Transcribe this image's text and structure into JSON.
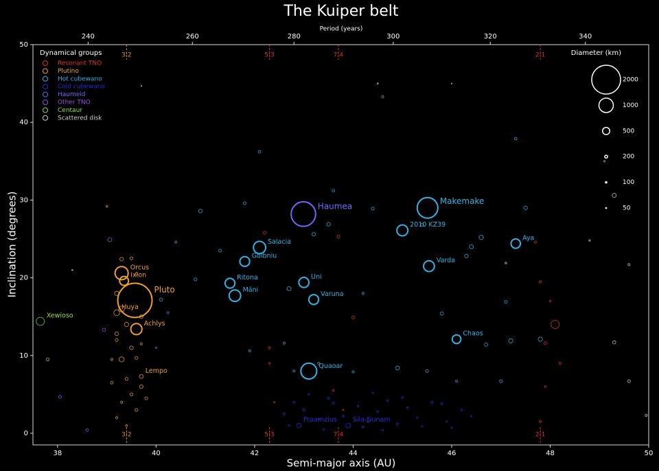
{
  "chart_data": {
    "type": "scatter",
    "title": "The Kuiper belt",
    "xlabel": "Semi-major axis (AU)",
    "ylabel": "Inclination (degrees)",
    "x2label": "Period (years)",
    "xlim": [
      37.5,
      50
    ],
    "ylim": [
      -1.5,
      50
    ],
    "xticks": [
      38,
      40,
      42,
      44,
      46,
      48,
      50
    ],
    "yticks": [
      0,
      10,
      20,
      30,
      40,
      50
    ],
    "x2ticks": [
      240,
      260,
      280,
      300,
      320,
      340
    ],
    "legend_title": "Dynamical groups",
    "legend_position": "upper left",
    "size_legend_title": "Diameter (km)",
    "size_legend": [
      2000,
      1000,
      500,
      200,
      100,
      50
    ],
    "resonances": [
      {
        "label": "3:2",
        "a": 39.4,
        "color": "#e08a3a"
      },
      {
        "label": "5:3",
        "a": 42.3,
        "color": "#e03030"
      },
      {
        "label": "7:4",
        "a": 43.7,
        "color": "#e03030"
      },
      {
        "label": "2:1",
        "a": 47.8,
        "color": "#e03030"
      }
    ],
    "series": [
      {
        "name": "Resonant TNO",
        "color": "#e03030",
        "x": [
          42.2,
          42.3,
          42.4,
          43.7,
          43.6,
          48.1,
          47.9,
          47.8,
          47.7,
          48.2,
          47.8,
          43.8,
          42.3,
          44.0,
          47.9,
          48.0
        ],
        "values": [
          25.8,
          11.0,
          4.0,
          25.3,
          5.5,
          14.0,
          11.6,
          19.5,
          24.6,
          9.0,
          1.5,
          3.0,
          9.0,
          14.9,
          6.0,
          17.0
        ],
        "sizes": [
          200,
          150,
          100,
          200,
          120,
          570,
          200,
          150,
          150,
          150,
          150,
          100,
          120,
          200,
          100,
          120
        ],
        "labels": [
          null,
          null,
          null,
          null,
          null,
          null,
          null,
          null,
          null,
          null,
          null,
          null,
          null,
          null,
          null,
          null
        ]
      },
      {
        "name": "Plutino",
        "color": "#f0a030",
        "x": [
          39.57,
          39.3,
          39.35,
          39.2,
          39.6,
          39.7,
          39.3,
          39.5,
          39.2,
          39.6,
          39.3,
          39.7,
          39.4,
          39.2,
          39.5,
          39.3,
          39.6,
          39.1,
          39.4,
          39.7,
          39.5,
          39.3,
          39.6,
          39.2,
          39.4,
          39.8,
          39.1,
          39.0,
          39.2,
          39.7
        ],
        "values": [
          17.1,
          20.6,
          19.6,
          15.5,
          13.4,
          7.3,
          22.4,
          22.5,
          18.0,
          20.5,
          16.0,
          15.0,
          14.0,
          12.0,
          11.0,
          9.5,
          9.7,
          9.5,
          7.0,
          6.0,
          5.0,
          4.0,
          3.0,
          2.0,
          1.0,
          4.5,
          6.5,
          29.2,
          12.8,
          11.5
        ],
        "sizes": [
          2377,
          910,
          617,
          406,
          772,
          272,
          250,
          200,
          300,
          180,
          400,
          250,
          300,
          200,
          250,
          350,
          200,
          150,
          200,
          250,
          200,
          150,
          200,
          150,
          120,
          200,
          180,
          120,
          250,
          150
        ],
        "labels": [
          "Pluto",
          "Orcus",
          "Ixion",
          "Huya",
          "Achlys",
          "Lempo",
          null,
          null,
          null,
          null,
          null,
          null,
          null,
          null,
          null,
          null,
          null,
          null,
          null,
          null,
          null,
          null,
          null,
          null,
          null,
          null,
          null,
          null,
          null,
          null
        ]
      },
      {
        "name": "Hot cubewano",
        "color": "#30b4e6",
        "x": [
          45.51,
          45.0,
          47.3,
          45.54,
          42.1,
          41.8,
          41.5,
          41.6,
          43.0,
          43.2,
          46.1,
          43.1,
          44.6,
          42.1,
          47.3,
          41.8,
          40.9,
          45.4,
          46.6,
          46.4,
          44.4,
          43.5,
          43.2,
          43.6,
          40.4,
          41.3,
          40.1,
          40.8,
          42.7,
          45.8,
          46.3,
          47.1,
          47.2,
          47.8,
          46.7,
          45.5,
          44.9,
          44.0,
          43.3,
          42.8,
          41.9,
          47.0,
          46.1,
          42.6,
          47.5,
          44.2
        ],
        "values": [
          29.0,
          26.1,
          24.4,
          21.5,
          23.9,
          22.1,
          19.3,
          17.7,
          19.4,
          17.2,
          12.1,
          8.0,
          43.3,
          36.2,
          37.9,
          29.6,
          28.6,
          26.8,
          25.2,
          24.0,
          28.9,
          26.9,
          25.6,
          31.2,
          24.6,
          23.5,
          17.2,
          19.8,
          18.6,
          15.4,
          22.8,
          16.9,
          11.9,
          12.1,
          11.4,
          8.0,
          8.4,
          7.9,
          9.0,
          8.0,
          10.6,
          6.7,
          6.7,
          11.6,
          29.0,
          18.0
        ],
        "sizes": [
          1430,
          760,
          650,
          750,
          850,
          680,
          680,
          800,
          700,
          680,
          600,
          1100,
          150,
          180,
          180,
          200,
          250,
          200,
          300,
          280,
          200,
          250,
          250,
          180,
          150,
          200,
          220,
          200,
          280,
          230,
          250,
          200,
          300,
          300,
          230,
          200,
          280,
          150,
          150,
          150,
          150,
          200,
          150,
          150,
          250,
          150
        ],
        "labels": [
          "Makemake",
          "2010 KZ39",
          "Aya",
          "Varda",
          "Salacia",
          "Goibniu",
          "Ritona",
          "Máni",
          "Uni",
          "Varuna",
          "Chaos",
          "Quaoar",
          null,
          null,
          null,
          null,
          null,
          null,
          null,
          null,
          null,
          null,
          null,
          null,
          null,
          null,
          null,
          null,
          null,
          null,
          null,
          null,
          null,
          null,
          null,
          null,
          null,
          null,
          null,
          null,
          null,
          null,
          null,
          null,
          null,
          null
        ]
      },
      {
        "name": "Cold cubewano",
        "color": "#2a2ad0",
        "x": [
          42.9,
          43.9,
          42.6,
          42.8,
          43.0,
          43.3,
          43.5,
          43.8,
          44.1,
          44.3,
          44.5,
          44.7,
          44.9,
          45.1,
          45.3,
          45.6,
          45.9,
          46.2,
          46.4,
          42.7,
          43.1,
          43.4,
          44.2,
          44.6,
          45.0,
          45.4,
          45.8,
          46.0,
          43.6,
          44.4
        ],
        "values": [
          1.0,
          1.0,
          2.5,
          4.0,
          3.0,
          1.8,
          4.5,
          2.2,
          3.5,
          1.5,
          2.8,
          4.2,
          1.2,
          3.3,
          2.0,
          4.0,
          1.5,
          3.0,
          2.2,
          1.0,
          5.0,
          0.5,
          0.8,
          0.4,
          4.6,
          0.9,
          3.8,
          0.7,
          3.9,
          5.2
        ],
        "sizes": [
          320,
          340,
          150,
          120,
          150,
          100,
          150,
          120,
          100,
          150,
          120,
          100,
          150,
          120,
          100,
          150,
          100,
          120,
          100,
          100,
          120,
          100,
          150,
          100,
          120,
          100,
          120,
          100,
          150,
          100
        ],
        "labels": [
          "Praamzius",
          "Sila-Nunam",
          null,
          null,
          null,
          null,
          null,
          null,
          null,
          null,
          null,
          null,
          null,
          null,
          null,
          null,
          null,
          null,
          null,
          null,
          null,
          null,
          null,
          null,
          null,
          null,
          null,
          null,
          null,
          null
        ]
      },
      {
        "name": "Haumeid",
        "color": "#6a6aff",
        "x": [
          42.99,
          38.05,
          38.6,
          40.24
        ],
        "values": [
          28.2,
          4.7,
          0.4,
          15.5
        ],
        "sizes": [
          1700,
          200,
          180,
          150
        ],
        "labels": [
          "Haumea",
          null,
          null,
          null
        ]
      },
      {
        "name": "Other TNO",
        "color": "#9a50e0",
        "x": [
          39.06,
          38.94,
          40.0
        ],
        "values": [
          24.9,
          13.3,
          11.0
        ],
        "sizes": [
          280,
          220,
          100
        ],
        "labels": [
          null,
          null,
          null
        ]
      },
      {
        "name": "Centaur",
        "color": "#90e040",
        "x": [
          37.65,
          37.8,
          49.1
        ],
        "values": [
          14.4,
          9.5,
          35.0
        ],
        "sizes": [
          565,
          200,
          100
        ],
        "labels": [
          "Xewioso",
          null,
          null
        ]
      },
      {
        "name": "Scattered disk",
        "color": "#d0d0d0",
        "x": [
          49.3,
          49.3,
          49.6,
          49.95,
          49.6,
          47.1,
          48.8,
          38.3,
          39.7,
          44.5,
          46.0
        ],
        "values": [
          30.6,
          11.7,
          6.7,
          2.3,
          21.7,
          21.9,
          24.8,
          21.0,
          44.7,
          45.0,
          45.0
        ],
        "sizes": [
          280,
          220,
          200,
          150,
          150,
          120,
          100,
          80,
          60,
          80,
          60
        ],
        "labels": [
          null,
          null,
          null,
          null,
          null,
          null,
          null,
          null,
          null,
          null,
          null
        ]
      }
    ]
  }
}
